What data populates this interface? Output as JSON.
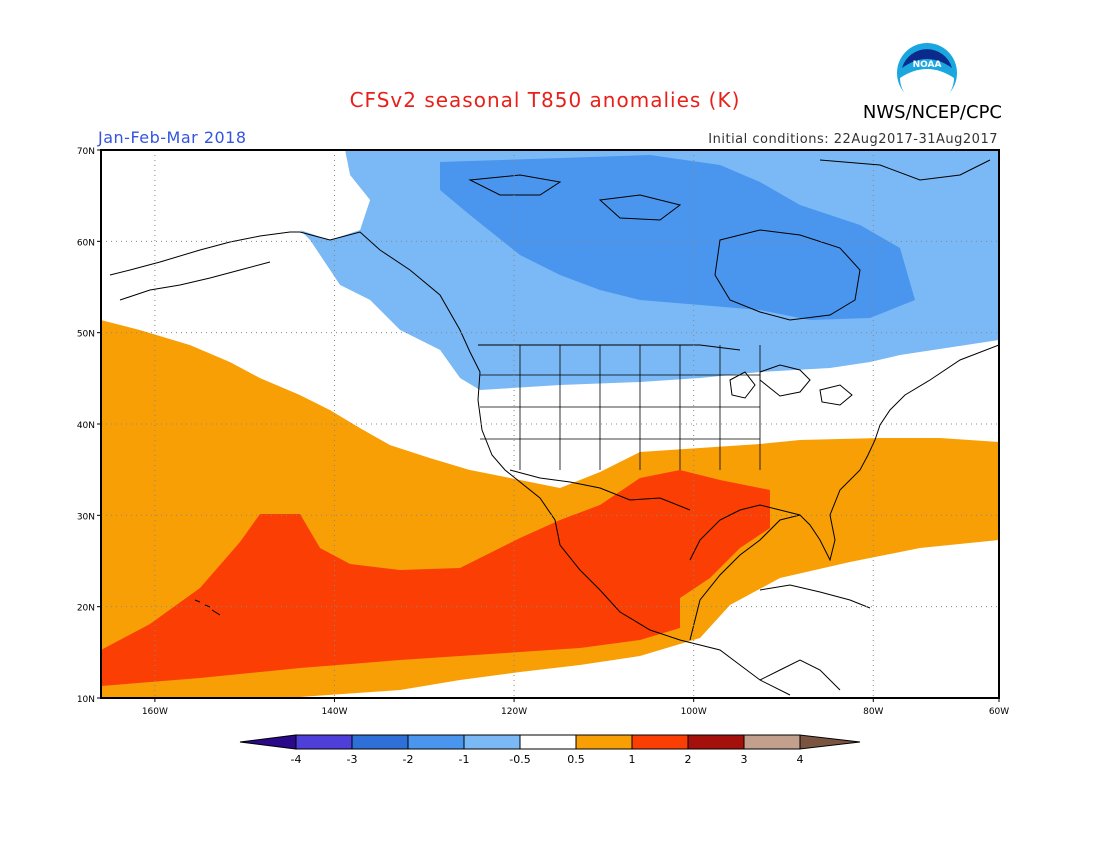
{
  "header": {
    "title": "CFSv2 seasonal T850 anomalies (K)",
    "period": "Jan-Feb-Mar 2018",
    "initial_conditions": "Initial conditions: 22Aug2017-31Aug2017",
    "agency": "NWS/NCEP/CPC",
    "logo_text": "NOAA"
  },
  "colors": {
    "title": "#e8201a",
    "period": "#3355dd",
    "neg_4": "#2a0a8a",
    "neg_3": "#4d3fd8",
    "neg_2": "#2e6fd8",
    "neg_1": "#4a96ee",
    "neg_05": "#7ab9f5",
    "neutral": "#ffffff",
    "pos_05": "#f99f06",
    "pos_1": "#fb3e03",
    "pos_2": "#a4110d",
    "pos_3": "#c3a08e",
    "pos_4": "#7a5440",
    "coast": "#000000",
    "grid": "#888888"
  },
  "map": {
    "lat_labels": [
      "70N",
      "60N",
      "50N",
      "40N",
      "30N",
      "20N",
      "10N"
    ],
    "lon_labels": [
      "160W",
      "140W",
      "120W",
      "100W",
      "80W",
      "60W"
    ]
  },
  "colorbar": {
    "labels": [
      "-4",
      "-3",
      "-2",
      "-1",
      "-0.5",
      "0.5",
      "1",
      "2",
      "3",
      "4"
    ]
  }
}
